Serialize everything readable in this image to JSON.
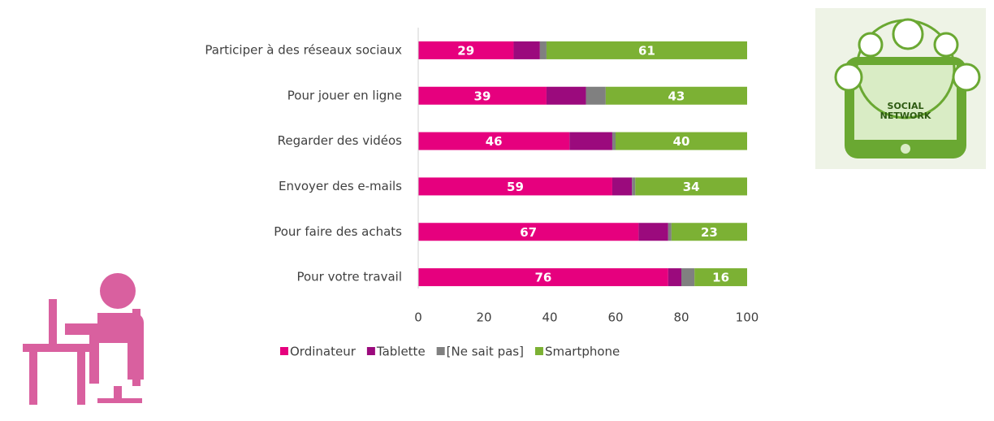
{
  "chart_data": {
    "type": "stacked-bar-horizontal",
    "categories": [
      "Participer à des réseaux sociaux",
      "Pour jouer en ligne",
      "Regarder des vidéos",
      "Envoyer des e-mails",
      "Pour faire des achats",
      "Pour votre travail"
    ],
    "series": [
      {
        "name": "Ordinateur",
        "color": "#e6007e",
        "values": [
          29,
          39,
          46,
          59,
          67,
          76
        ],
        "labels": true
      },
      {
        "name": "Tablette",
        "color": "#9b0a7d",
        "values": [
          8,
          12,
          13,
          6,
          9,
          4
        ],
        "labels": false
      },
      {
        "name": "[Ne sait pas]",
        "color": "#808080",
        "values": [
          2,
          6,
          1,
          1,
          1,
          4
        ],
        "labels": false
      },
      {
        "name": "Smartphone",
        "color": "#7cb134",
        "values": [
          61,
          43,
          40,
          34,
          23,
          16
        ],
        "labels": true
      }
    ],
    "xlim": [
      0,
      100
    ],
    "xticks": [
      0,
      20,
      40,
      60,
      80,
      100
    ],
    "legend": "bottom"
  },
  "image_text": [
    "SOCIAL",
    "NETWORK"
  ]
}
